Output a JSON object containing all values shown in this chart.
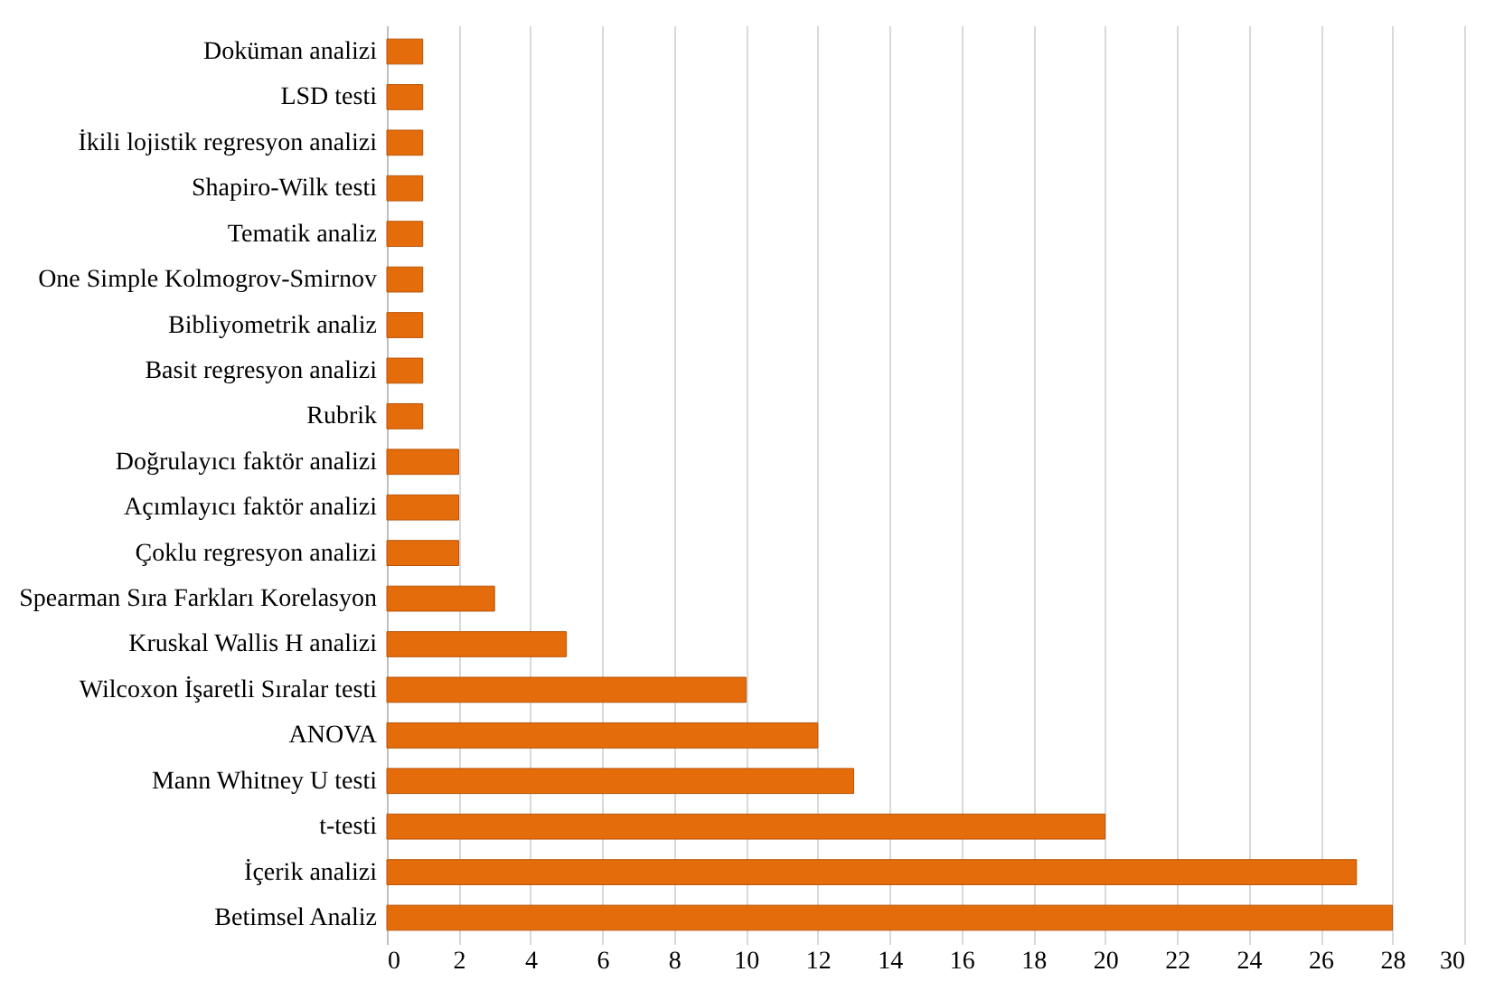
{
  "chart_data": {
    "type": "bar",
    "orientation": "horizontal",
    "categories": [
      "Doküman analizi",
      "LSD testi",
      "İkili lojistik regresyon analizi",
      "Shapiro-Wilk testi",
      "Tematik analiz",
      "One Simple Kolmogrov-Smirnov",
      "Bibliyometrik analiz",
      "Basit regresyon analizi",
      "Rubrik",
      "Doğrulayıcı faktör analizi",
      "Açımlayıcı faktör analizi",
      "Çoklu regresyon analizi",
      "Spearman Sıra Farkları Korelasyon",
      "Kruskal Wallis H analizi",
      "Wilcoxon İşaretli Sıralar testi",
      "ANOVA",
      "Mann Whitney U testi",
      "t-testi",
      "İçerik analizi",
      "Betimsel Analiz"
    ],
    "values": [
      1,
      1,
      1,
      1,
      1,
      1,
      1,
      1,
      1,
      2,
      2,
      2,
      3,
      5,
      10,
      12,
      13,
      20,
      27,
      28
    ],
    "color": "#e46c0a",
    "xlim": [
      0,
      30
    ],
    "xticks": [
      0,
      2,
      4,
      6,
      8,
      10,
      12,
      14,
      16,
      18,
      20,
      22,
      24,
      26,
      28,
      30
    ],
    "grid": "x"
  }
}
